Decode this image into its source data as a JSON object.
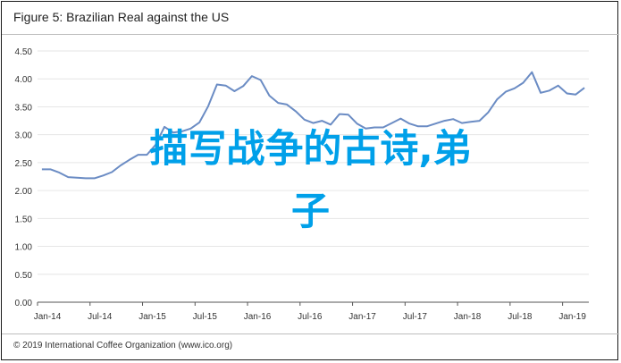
{
  "header": {
    "title": "Figure 5: Brazilian Real against the US"
  },
  "footer": {
    "text": "© 2019 International Coffee Organization (www.ico.org)"
  },
  "overlay": {
    "line1": "描写战争的古诗,弟",
    "line2": "子"
  },
  "colors": {
    "line": "#6b8cc4",
    "grid": "#e6e6e6",
    "axis": "#555555",
    "overlay": "#00a0e9"
  },
  "chart_data": {
    "type": "line",
    "title": "Figure 5: Brazilian Real against the US",
    "xlabel": "",
    "ylabel": "",
    "x_range": [
      "2014-01",
      "2019-03"
    ],
    "ylim": [
      0,
      4.5
    ],
    "yticks": [
      "0.00",
      "0.50",
      "1.00",
      "1.50",
      "2.00",
      "2.50",
      "3.00",
      "3.50",
      "4.00",
      "4.50"
    ],
    "xticks": [
      "Jan-14",
      "Jul-14",
      "Jan-15",
      "Jul-15",
      "Jan-16",
      "Jul-16",
      "Jan-17",
      "Jul-17",
      "Jan-18",
      "Jul-18",
      "Jan-19"
    ],
    "grid": "horizontal",
    "legend": "none",
    "series": [
      {
        "x": [
          "2014-01",
          "2014-02",
          "2014-03",
          "2014-04",
          "2014-05",
          "2014-06",
          "2014-07",
          "2014-08",
          "2014-09",
          "2014-10",
          "2014-11",
          "2014-12",
          "2015-01",
          "2015-02",
          "2015-03",
          "2015-04",
          "2015-05",
          "2015-06",
          "2015-07",
          "2015-08",
          "2015-09",
          "2015-10",
          "2015-11",
          "2015-12",
          "2016-01",
          "2016-02",
          "2016-03",
          "2016-04",
          "2016-05",
          "2016-06",
          "2016-07",
          "2016-08",
          "2016-09",
          "2016-10",
          "2016-11",
          "2016-12",
          "2017-01",
          "2017-02",
          "2017-03",
          "2017-04",
          "2017-05",
          "2017-06",
          "2017-07",
          "2017-08",
          "2017-09",
          "2017-10",
          "2017-11",
          "2017-12",
          "2018-01",
          "2018-02",
          "2018-03",
          "2018-04",
          "2018-05",
          "2018-06",
          "2018-07",
          "2018-08",
          "2018-09",
          "2018-10",
          "2018-11",
          "2018-12",
          "2019-01",
          "2019-02",
          "2019-03"
        ],
        "values": [
          2.38,
          2.38,
          2.32,
          2.24,
          2.23,
          2.22,
          2.22,
          2.27,
          2.33,
          2.45,
          2.55,
          2.64,
          2.64,
          2.82,
          3.14,
          3.04,
          3.06,
          3.11,
          3.22,
          3.51,
          3.9,
          3.88,
          3.78,
          3.87,
          4.05,
          3.98,
          3.7,
          3.57,
          3.54,
          3.42,
          3.27,
          3.21,
          3.25,
          3.18,
          3.37,
          3.36,
          3.2,
          3.11,
          3.13,
          3.13,
          3.21,
          3.29,
          3.2,
          3.15,
          3.15,
          3.2,
          3.25,
          3.28,
          3.21,
          3.23,
          3.25,
          3.4,
          3.63,
          3.77,
          3.83,
          3.93,
          4.12,
          3.75,
          3.79,
          3.88,
          3.74,
          3.72,
          3.84
        ]
      }
    ]
  }
}
